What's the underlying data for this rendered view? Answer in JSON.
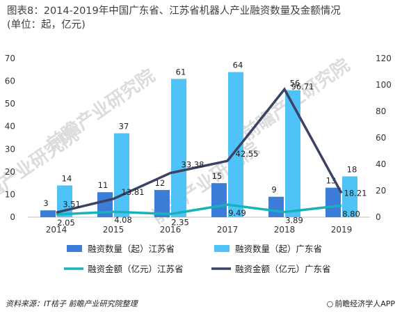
{
  "title": "图表8：2014-2019年中国广东省、江苏省机器人产业融资数量及金额情况\n(单位：起，亿元)",
  "source": "资料来源：IT桔子 前瞻产业研究院整理",
  "brand": "前瞻经济学人APP",
  "watermark": "前瞻产业研究院",
  "colors": {
    "js_count": "#3B7DD8",
    "gd_count": "#4FC3F7",
    "js_amount": "#17B3B8",
    "gd_amount": "#3C4263"
  },
  "chart_data": {
    "type": "bar+line",
    "categories": [
      "2014",
      "2015",
      "2016",
      "2017",
      "2018",
      "2019"
    ],
    "left_axis": {
      "min": 0,
      "max": 70,
      "ticks": [
        "0",
        "10",
        "20",
        "30",
        "40",
        "50",
        "60",
        "70"
      ]
    },
    "right_axis": {
      "min": 0,
      "max": 120,
      "ticks": [
        "0",
        "20",
        "40",
        "60",
        "80",
        "100",
        "120"
      ]
    },
    "series": [
      {
        "name": "融资数量（起）江苏省",
        "type": "bar",
        "axis": "left",
        "values": [
          3,
          11,
          12,
          15,
          9,
          13
        ],
        "labels": [
          "3",
          "11",
          "12",
          "15",
          "9",
          "13"
        ]
      },
      {
        "name": "融资数量（起）广东省",
        "type": "bar",
        "axis": "left",
        "values": [
          14,
          37,
          61,
          64,
          56,
          18
        ],
        "labels": [
          "14",
          "37",
          "61",
          "64",
          "56",
          "18"
        ]
      },
      {
        "name": "融资金额（亿元）江苏省",
        "type": "line",
        "axis": "right",
        "values": [
          2.05,
          4.08,
          2.35,
          9.49,
          3.89,
          8.8
        ],
        "labels": [
          "2.05",
          "4.08",
          "2.35",
          "9.49",
          "3.89",
          "8.80"
        ]
      },
      {
        "name": "融资金额（亿元）广东省",
        "type": "line",
        "axis": "right",
        "values": [
          3.51,
          13.81,
          33.38,
          42.55,
          96.71,
          18.21
        ],
        "labels": [
          "3.51",
          "13.81",
          "33.38",
          "42.55",
          "96.71",
          "18.21"
        ]
      }
    ],
    "legend_position": "bottom",
    "grid": false
  }
}
